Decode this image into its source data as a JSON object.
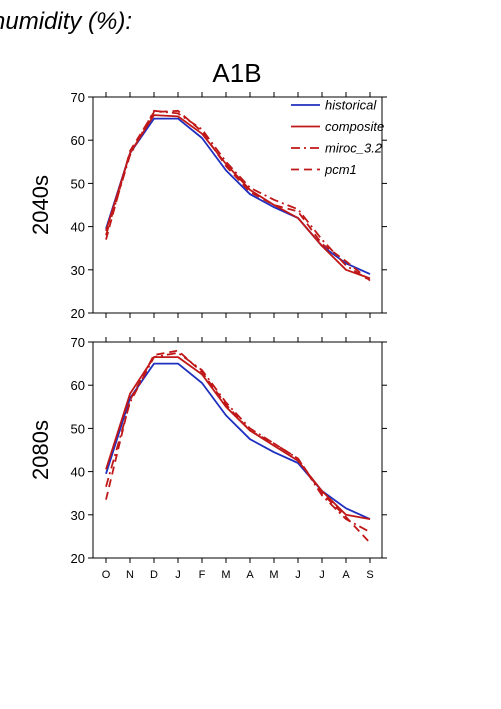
{
  "heading": "humidity (%):",
  "scenario_title": "A1B",
  "series_styles": [
    {
      "name": "historical",
      "color": "#1f2fbf",
      "dash": "solid"
    },
    {
      "name": "composite",
      "color": "#c01818",
      "dash": "solid"
    },
    {
      "name": "miroc_3.2",
      "color": "#c01818",
      "dash": "dash-dot"
    },
    {
      "name": "pcm1",
      "color": "#c01818",
      "dash": "dash"
    }
  ],
  "chart_data": [
    {
      "type": "line",
      "title": "A1B",
      "ylabel": "2040s",
      "ylim": [
        20,
        70
      ],
      "yticks": [
        20,
        30,
        40,
        50,
        60,
        70
      ],
      "categories": [
        "O",
        "N",
        "D",
        "J",
        "F",
        "M",
        "A",
        "M",
        "J",
        "J",
        "A",
        "S"
      ],
      "legend": "top-right",
      "series": [
        {
          "name": "historical",
          "values": [
            39.5,
            57,
            65,
            65,
            60.5,
            53,
            47.5,
            44.5,
            42,
            35.5,
            31.5,
            29
          ]
        },
        {
          "name": "composite",
          "values": [
            39,
            57,
            65.8,
            65.5,
            61.5,
            54.5,
            48.5,
            45,
            42,
            35.5,
            30,
            28
          ]
        },
        {
          "name": "miroc_3.2",
          "values": [
            38,
            56.5,
            66.8,
            66.2,
            62.5,
            55,
            49,
            46.2,
            44,
            37,
            31,
            27.5
          ]
        },
        {
          "name": "pcm1",
          "values": [
            37,
            57.5,
            66.5,
            66.8,
            62,
            54,
            48,
            45,
            43.5,
            36,
            32,
            27.5
          ]
        }
      ]
    },
    {
      "type": "line",
      "ylabel": "2080s",
      "ylim": [
        20,
        70
      ],
      "yticks": [
        20,
        30,
        40,
        50,
        60,
        70
      ],
      "categories": [
        "O",
        "N",
        "D",
        "J",
        "F",
        "M",
        "A",
        "M",
        "J",
        "J",
        "A",
        "S"
      ],
      "series": [
        {
          "name": "historical",
          "values": [
            39.5,
            57,
            65,
            65,
            60.5,
            53,
            47.5,
            44.5,
            42,
            35.5,
            31.5,
            29
          ]
        },
        {
          "name": "composite",
          "values": [
            40.5,
            58,
            66.5,
            66.5,
            62.5,
            55,
            49.5,
            46,
            42.5,
            35.5,
            30,
            29
          ]
        },
        {
          "name": "miroc_3.2",
          "values": [
            36.5,
            56,
            66.5,
            67.5,
            63.5,
            56,
            50,
            46.5,
            43,
            34.5,
            29,
            26
          ]
        },
        {
          "name": "pcm1",
          "values": [
            33.5,
            56.5,
            67,
            68,
            63,
            55.5,
            49.5,
            46.5,
            43,
            35,
            29.5,
            23.5
          ]
        }
      ]
    }
  ]
}
